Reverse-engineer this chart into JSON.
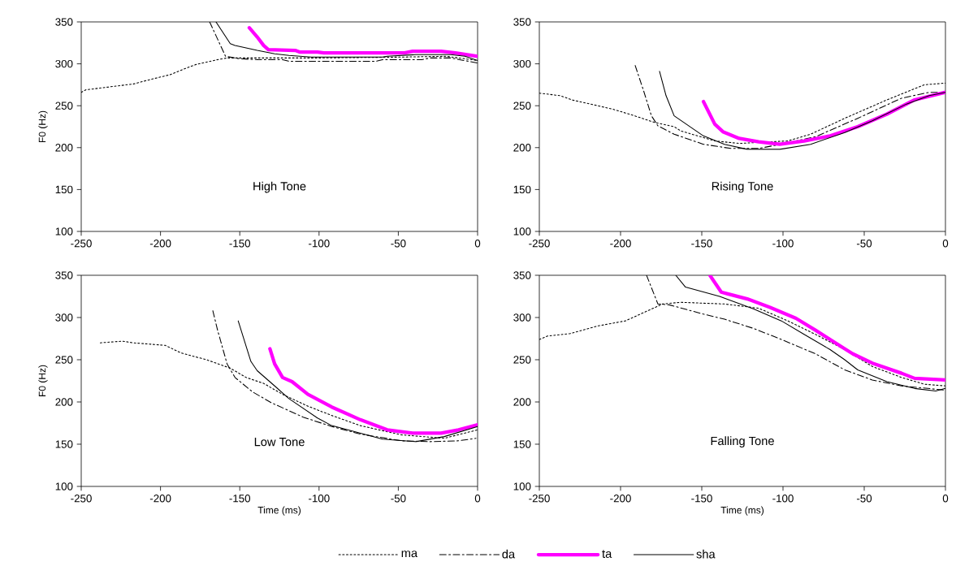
{
  "chart_data": [
    {
      "type": "line",
      "title": "High Tone",
      "ylabel": "F0 (Hz)",
      "xlim": [
        -250,
        0
      ],
      "ylim": [
        100,
        350
      ],
      "xticks": [
        -250,
        -200,
        -150,
        -100,
        -50,
        0
      ],
      "yticks": [
        100,
        150,
        200,
        250,
        300,
        350
      ],
      "legend": "bottom",
      "series": [
        {
          "name": "ma",
          "color": "#000000",
          "line_style": "dotted",
          "x": [
            -250,
            -247,
            -217,
            -205,
            -194,
            -185,
            -178,
            -164,
            -158,
            -100,
            -50,
            -20,
            0
          ],
          "values": [
            266,
            269,
            276,
            282,
            287,
            294,
            299,
            305,
            307,
            307,
            308,
            309,
            304
          ]
        },
        {
          "name": "da",
          "color": "#000000",
          "line_style": "dashed",
          "x": [
            -169,
            -159,
            -150,
            -139,
            -123,
            -119,
            -64,
            -60,
            -35,
            -30,
            -17,
            0
          ],
          "values": [
            350,
            309,
            306,
            305,
            305,
            303,
            303,
            305,
            305,
            307,
            307,
            301
          ]
        },
        {
          "name": "ta",
          "color": "#ff00ff",
          "line_style": "solid",
          "x": [
            -144,
            -139,
            -135,
            -132,
            -115,
            -112,
            -101,
            -97,
            -46,
            -41,
            -23,
            -14,
            0
          ],
          "values": [
            343,
            332,
            322,
            317,
            316,
            314,
            314,
            313,
            313,
            315,
            315,
            313,
            309
          ]
        },
        {
          "name": "sha",
          "color": "#000000",
          "line_style": "solid",
          "x": [
            -165,
            -156,
            -153,
            -139,
            -128,
            -119,
            -105,
            -60,
            -57,
            -39,
            -17,
            -8,
            0
          ],
          "values": [
            350,
            324,
            322,
            316,
            312,
            310,
            308,
            308,
            309,
            311,
            311,
            309,
            304
          ]
        }
      ]
    },
    {
      "type": "line",
      "title": "Rising Tone",
      "xlim": [
        -250,
        0
      ],
      "ylim": [
        100,
        350
      ],
      "xticks": [
        -250,
        -200,
        -150,
        -100,
        -50,
        0
      ],
      "yticks": [
        100,
        150,
        200,
        250,
        300,
        350
      ],
      "series": [
        {
          "color": "#000000",
          "line_style": "dotted",
          "x": [
            -250,
            -237,
            -230,
            -205,
            -193,
            -179,
            -167,
            -163,
            -142,
            -127,
            -97,
            -83,
            -62,
            -36,
            -13,
            0
          ],
          "values": [
            265,
            262,
            257,
            246,
            239,
            230,
            225,
            220,
            208,
            205,
            208,
            216,
            235,
            257,
            275,
            277
          ]
        },
        {
          "color": "#000000",
          "line_style": "dashed",
          "x": [
            -191,
            -186,
            -181,
            -177,
            -167,
            -149,
            -132,
            -115,
            -104,
            -80,
            -54,
            -27,
            -10,
            0
          ],
          "values": [
            298,
            269,
            238,
            226,
            216,
            204,
            199,
            199,
            203,
            213,
            235,
            259,
            266,
            266
          ]
        },
        {
          "color": "#ff00ff",
          "line_style": "solid",
          "x": [
            -149,
            -142,
            -137,
            -127,
            -115,
            -102,
            -87,
            -71,
            -54,
            -36,
            -19,
            0
          ],
          "values": [
            255,
            228,
            219,
            211,
            207,
            204,
            208,
            214,
            225,
            240,
            257,
            266
          ]
        },
        {
          "color": "#000000",
          "line_style": "solid",
          "x": [
            -176,
            -172,
            -167,
            -149,
            -136,
            -122,
            -102,
            -83,
            -62,
            -45,
            -24,
            -10,
            0
          ],
          "values": [
            291,
            262,
            238,
            214,
            204,
            198,
            198,
            204,
            218,
            232,
            252,
            262,
            266
          ]
        }
      ]
    },
    {
      "type": "line",
      "title": "Low Tone",
      "xlabel": "Time (ms)",
      "ylabel": "F0 (Hz)",
      "xlim": [
        -250,
        0
      ],
      "ylim": [
        100,
        350
      ],
      "xticks": [
        -250,
        -200,
        -150,
        -100,
        -50,
        0
      ],
      "yticks": [
        100,
        150,
        200,
        250,
        300,
        350
      ],
      "series": [
        {
          "color": "#000000",
          "line_style": "dotted",
          "x": [
            -238,
            -224,
            -217,
            -197,
            -187,
            -171,
            -156,
            -146,
            -135,
            -123,
            -107,
            -92,
            -74,
            -48,
            -21,
            0
          ],
          "values": [
            270,
            272,
            270,
            267,
            258,
            250,
            240,
            229,
            222,
            209,
            195,
            184,
            172,
            161,
            157,
            167
          ]
        },
        {
          "color": "#000000",
          "line_style": "dashed",
          "x": [
            -167,
            -164,
            -158,
            -153,
            -142,
            -130,
            -110,
            -92,
            -74,
            -48,
            -30,
            -12,
            -1
          ],
          "values": [
            308,
            285,
            245,
            229,
            212,
            199,
            182,
            171,
            162,
            154,
            153,
            154,
            157
          ]
        },
        {
          "color": "#ff00ff",
          "line_style": "solid",
          "x": [
            -131,
            -128,
            -123,
            -117,
            -107,
            -92,
            -74,
            -57,
            -41,
            -23,
            -12,
            0
          ],
          "values": [
            263,
            245,
            229,
            224,
            209,
            194,
            179,
            167,
            163,
            163,
            167,
            173
          ]
        },
        {
          "color": "#000000",
          "line_style": "solid",
          "x": [
            -151,
            -143,
            -139,
            -128,
            -119,
            -101,
            -92,
            -80,
            -60,
            -39,
            -21,
            0
          ],
          "values": [
            296,
            248,
            237,
            219,
            204,
            181,
            172,
            166,
            156,
            153,
            159,
            171
          ]
        }
      ]
    },
    {
      "type": "line",
      "title": "Falling Tone",
      "xlabel": "Time (ms)",
      "xlim": [
        -250,
        0
      ],
      "ylim": [
        100,
        350
      ],
      "xticks": [
        -250,
        -200,
        -150,
        -100,
        -50,
        0
      ],
      "yticks": [
        100,
        150,
        200,
        250,
        300,
        350
      ],
      "series": [
        {
          "color": "#000000",
          "line_style": "dotted",
          "x": [
            -250,
            -245,
            -231,
            -214,
            -197,
            -181,
            -174,
            -163,
            -136,
            -115,
            -97,
            -80,
            -62,
            -45,
            -27,
            -13,
            0
          ],
          "values": [
            274,
            278,
            281,
            290,
            296,
            310,
            316,
            318,
            316,
            311,
            296,
            280,
            262,
            242,
            229,
            221,
            219
          ]
        },
        {
          "color": "#000000",
          "line_style": "dashed",
          "x": [
            -184,
            -177,
            -170,
            -149,
            -136,
            -118,
            -101,
            -80,
            -62,
            -45,
            -27,
            0
          ],
          "values": [
            350,
            316,
            315,
            304,
            298,
            287,
            274,
            257,
            238,
            226,
            219,
            214
          ]
        },
        {
          "color": "#ff00ff",
          "line_style": "solid",
          "x": [
            -145,
            -138,
            -134,
            -122,
            -108,
            -92,
            -80,
            -62,
            -57,
            -45,
            -27,
            -19,
            0
          ],
          "values": [
            350,
            330,
            328,
            322,
            312,
            299,
            285,
            263,
            257,
            246,
            234,
            228,
            226
          ]
        },
        {
          "color": "#000000",
          "line_style": "solid",
          "x": [
            -166,
            -160,
            -139,
            -118,
            -101,
            -87,
            -71,
            -62,
            -54,
            -36,
            -19,
            -6,
            0
          ],
          "values": [
            350,
            336,
            325,
            310,
            296,
            280,
            262,
            250,
            238,
            224,
            216,
            213,
            216
          ]
        }
      ]
    }
  ]
}
